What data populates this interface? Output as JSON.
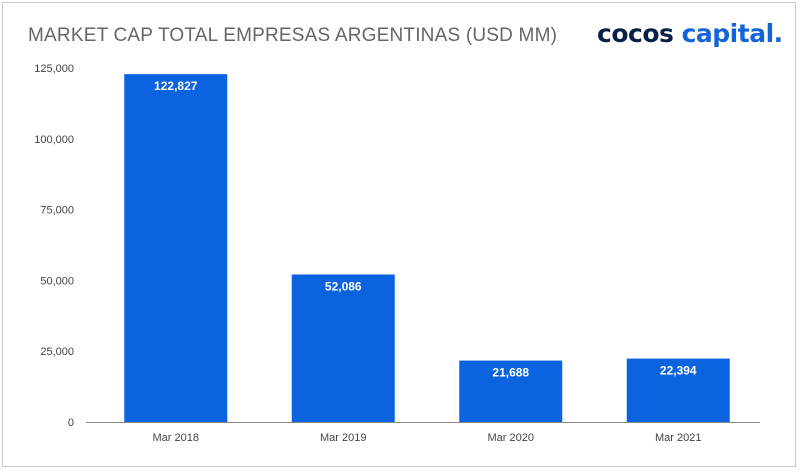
{
  "header": {
    "title": "MARKET CAP TOTAL EMPRESAS ARGENTINAS (USD MM)"
  },
  "logo": {
    "word1": "cocos",
    "word2": "capital",
    "dot": "."
  },
  "colors": {
    "bar": "#0b63e0",
    "axis": "#888888",
    "text": "#444444",
    "brand_dark": "#0a1f44",
    "brand_blue": "#1264d8"
  },
  "chart_data": {
    "type": "bar",
    "title": "MARKET CAP TOTAL EMPRESAS ARGENTINAS (USD MM)",
    "xlabel": "",
    "ylabel": "",
    "categories": [
      "Mar 2018",
      "Mar 2019",
      "Mar 2020",
      "Mar 2021"
    ],
    "values": [
      122827,
      52086,
      21688,
      22394
    ],
    "value_labels": [
      "122,827",
      "52,086",
      "21,688",
      "22,394"
    ],
    "ylim": [
      0,
      125000
    ],
    "yticks": [
      0,
      25000,
      50000,
      75000,
      100000,
      125000
    ],
    "ytick_labels": [
      "0",
      "25,000",
      "50,000",
      "75,000",
      "100,000",
      "125,000"
    ],
    "grid": false,
    "legend": "none"
  }
}
